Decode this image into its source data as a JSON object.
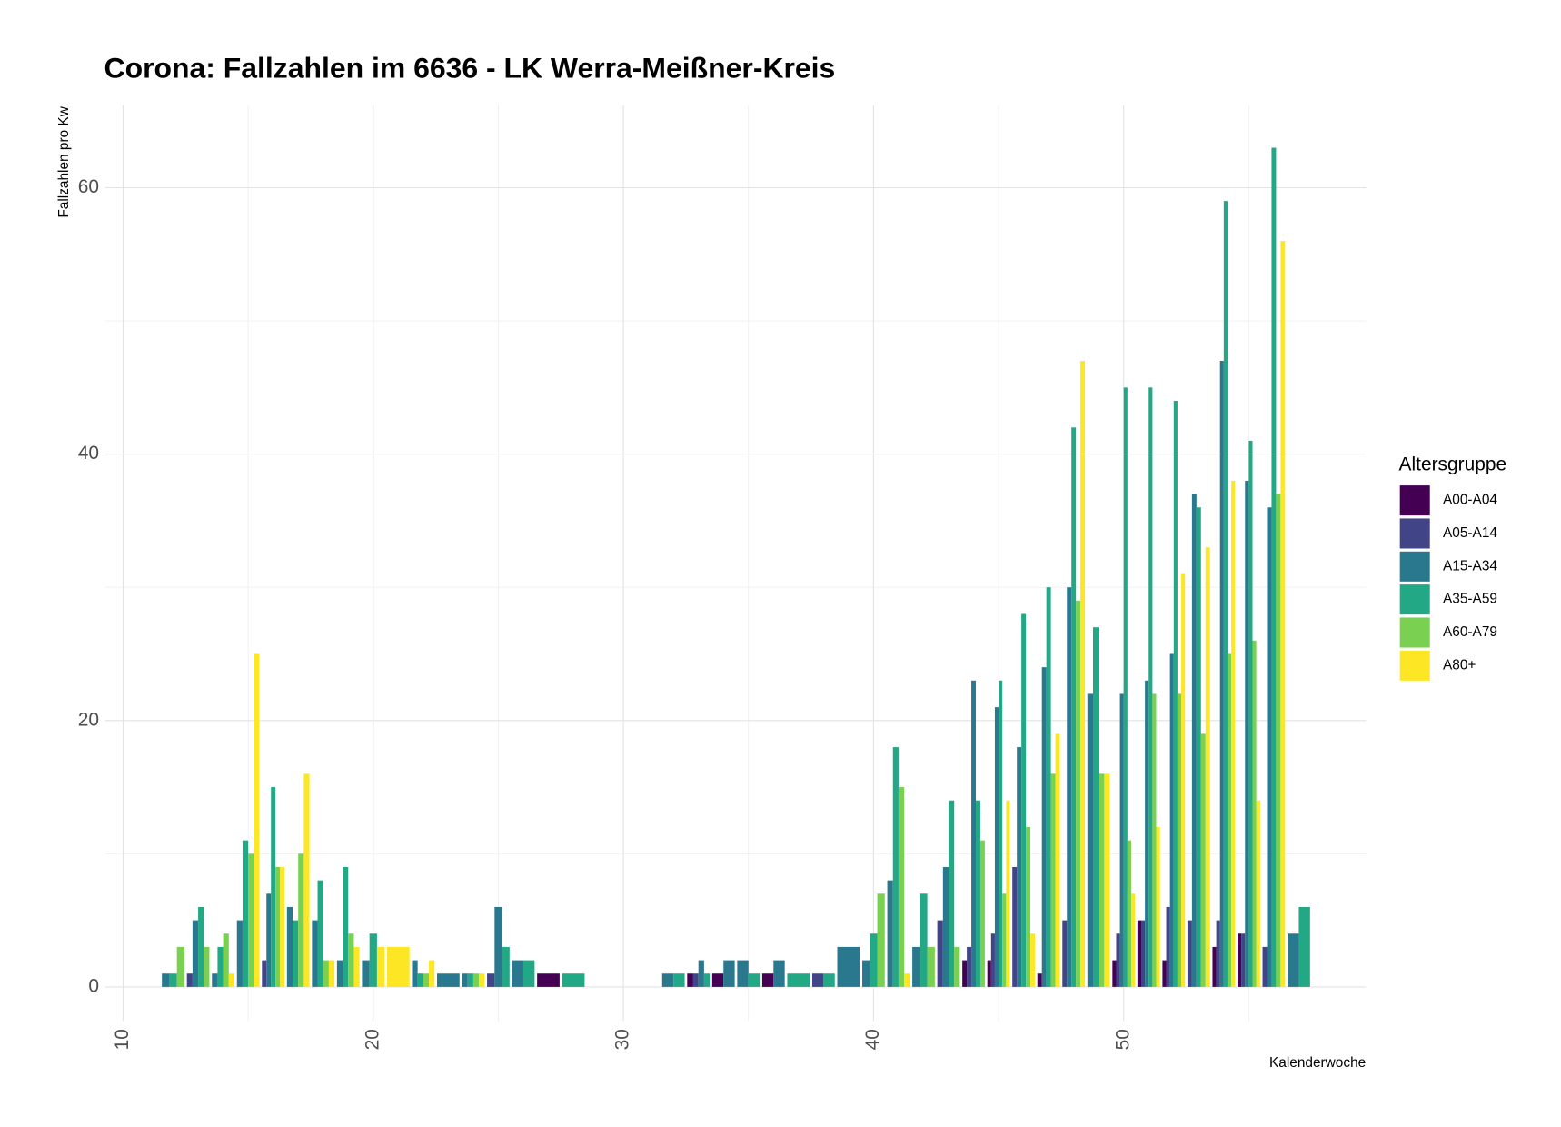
{
  "chart_data": {
    "type": "bar",
    "title": "Corona: Fallzahlen im 6636 - LK Werra-Meißner-Kreis",
    "x_label": "Kalenderwoche",
    "y_label": "Fallzahlen pro Kw",
    "legend_title": "Altersgruppe",
    "x": [
      12,
      13,
      14,
      15,
      16,
      17,
      18,
      19,
      20,
      21,
      22,
      23,
      24,
      25,
      26,
      27,
      28,
      32,
      33,
      34,
      35,
      36,
      37,
      38,
      39,
      40,
      41,
      42,
      43,
      44,
      45,
      46,
      47,
      48,
      49,
      50,
      51,
      52,
      53,
      54,
      55,
      56,
      57
    ],
    "series": [
      {
        "name": "A00-A04",
        "color": "#440154",
        "values": [
          null,
          null,
          null,
          null,
          null,
          null,
          null,
          null,
          null,
          null,
          null,
          null,
          null,
          null,
          null,
          1,
          null,
          null,
          1,
          1,
          null,
          1,
          null,
          null,
          null,
          null,
          null,
          null,
          null,
          2,
          2,
          null,
          1,
          null,
          null,
          2,
          5,
          2,
          null,
          3,
          4,
          null,
          null
        ]
      },
      {
        "name": "A05-A14",
        "color": "#414487",
        "values": [
          null,
          1,
          null,
          null,
          2,
          null,
          null,
          null,
          null,
          null,
          null,
          null,
          null,
          1,
          null,
          null,
          null,
          null,
          1,
          null,
          null,
          null,
          null,
          1,
          null,
          null,
          null,
          null,
          5,
          3,
          4,
          9,
          null,
          5,
          null,
          4,
          5,
          6,
          5,
          5,
          4,
          3,
          null
        ]
      },
      {
        "name": "A15-A34",
        "color": "#2A788E",
        "values": [
          1,
          5,
          1,
          5,
          7,
          6,
          5,
          2,
          2,
          null,
          2,
          1,
          1,
          6,
          2,
          null,
          null,
          1,
          2,
          2,
          2,
          2,
          null,
          null,
          3,
          2,
          8,
          3,
          9,
          23,
          21,
          18,
          24,
          30,
          22,
          22,
          23,
          25,
          37,
          47,
          38,
          36,
          4
        ]
      },
      {
        "name": "A35-A59",
        "color": "#22A884",
        "values": [
          1,
          6,
          3,
          11,
          15,
          5,
          8,
          9,
          4,
          null,
          1,
          null,
          1,
          3,
          2,
          null,
          1,
          1,
          1,
          null,
          1,
          null,
          1,
          1,
          null,
          4,
          18,
          7,
          14,
          14,
          23,
          28,
          30,
          42,
          27,
          45,
          45,
          44,
          36,
          59,
          41,
          63,
          6
        ]
      },
      {
        "name": "A60-A79",
        "color": "#7AD151",
        "values": [
          3,
          3,
          4,
          10,
          9,
          10,
          2,
          4,
          null,
          null,
          1,
          null,
          1,
          null,
          null,
          null,
          null,
          null,
          null,
          null,
          null,
          null,
          null,
          null,
          null,
          7,
          15,
          3,
          3,
          11,
          7,
          12,
          16,
          29,
          16,
          11,
          22,
          22,
          19,
          25,
          26,
          37,
          null
        ]
      },
      {
        "name": "A80+",
        "color": "#FDE725",
        "values": [
          null,
          null,
          1,
          25,
          9,
          16,
          2,
          3,
          3,
          3,
          2,
          null,
          1,
          null,
          null,
          null,
          null,
          null,
          null,
          null,
          null,
          null,
          null,
          null,
          null,
          null,
          1,
          null,
          null,
          null,
          14,
          4,
          19,
          47,
          16,
          7,
          12,
          31,
          33,
          38,
          14,
          56,
          null
        ]
      }
    ],
    "xlim": [
      9.28,
      59.68
    ],
    "ylim": [
      -2.55,
      66.2
    ],
    "xticks": [
      10,
      20,
      30,
      40,
      50
    ],
    "yticks": [
      0,
      20,
      40,
      60
    ],
    "grid": true,
    "legend": "right"
  }
}
